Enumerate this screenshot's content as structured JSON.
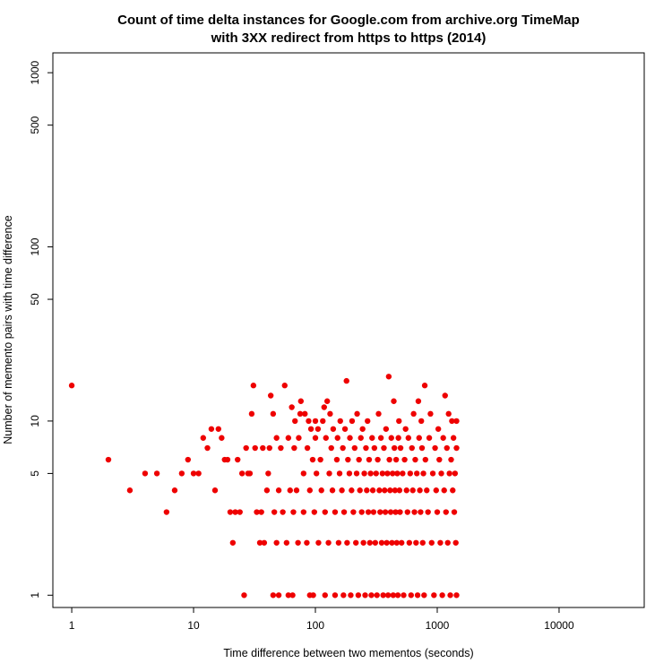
{
  "chart_data": {
    "type": "scatter",
    "title_line1": "Count of time delta instances for Google.com from archive.org TimeMap",
    "title_line2": "with 3XX redirect from https to https (2014)",
    "xlabel": "Time difference between two mementos (seconds)",
    "ylabel": "Number of memento pairs with time difference",
    "x_scale": "log",
    "y_scale": "log",
    "xlim": [
      0.7,
      50000
    ],
    "ylim": [
      0.85,
      1300
    ],
    "x_ticks": [
      1,
      10,
      100,
      1000,
      10000
    ],
    "x_tick_labels": [
      "1",
      "10",
      "100",
      "1000",
      "10000"
    ],
    "y_ticks": [
      1,
      5,
      10,
      50,
      100,
      500,
      1000
    ],
    "y_tick_labels": [
      "1",
      "5",
      "10",
      "50",
      "100",
      "500",
      "1000"
    ],
    "grid": false,
    "legend": "none",
    "point_color": "#ee0000",
    "series": [
      {
        "points": [
          [
            1,
            16
          ],
          [
            2,
            6
          ],
          [
            3,
            4
          ],
          [
            4,
            5
          ],
          [
            5,
            5
          ],
          [
            6,
            3
          ],
          [
            7,
            4
          ],
          [
            8,
            5
          ],
          [
            9,
            6
          ],
          [
            10,
            5
          ],
          [
            11,
            5
          ],
          [
            12,
            8
          ],
          [
            13,
            7
          ],
          [
            14,
            9
          ],
          [
            15,
            4
          ],
          [
            16,
            9
          ],
          [
            17,
            8
          ],
          [
            18,
            6
          ],
          [
            19,
            6
          ],
          [
            20,
            3
          ],
          [
            21,
            2
          ],
          [
            22,
            3
          ],
          [
            23,
            6
          ],
          [
            24,
            3
          ],
          [
            25,
            5
          ],
          [
            26,
            1
          ],
          [
            27,
            7
          ],
          [
            28,
            5
          ],
          [
            29,
            5
          ],
          [
            30,
            11
          ],
          [
            31,
            16
          ],
          [
            32,
            7
          ],
          [
            33,
            3
          ],
          [
            35,
            2
          ],
          [
            36,
            3
          ],
          [
            37,
            7
          ],
          [
            38,
            2
          ],
          [
            40,
            4
          ],
          [
            41,
            5
          ],
          [
            42,
            7
          ],
          [
            43,
            14
          ],
          [
            45,
            1
          ],
          [
            45,
            11
          ],
          [
            46,
            3
          ],
          [
            48,
            2
          ],
          [
            48,
            8
          ],
          [
            50,
            1
          ],
          [
            50,
            4
          ],
          [
            52,
            7
          ],
          [
            54,
            3
          ],
          [
            56,
            16
          ],
          [
            58,
            2
          ],
          [
            60,
            8
          ],
          [
            60,
            1
          ],
          [
            62,
            4
          ],
          [
            64,
            12
          ],
          [
            65,
            1
          ],
          [
            66,
            3
          ],
          [
            67,
            7
          ],
          [
            68,
            10
          ],
          [
            70,
            4
          ],
          [
            72,
            2
          ],
          [
            73,
            8
          ],
          [
            75,
            11
          ],
          [
            76,
            13
          ],
          [
            80,
            3
          ],
          [
            80,
            5
          ],
          [
            82,
            11
          ],
          [
            85,
            2
          ],
          [
            86,
            7
          ],
          [
            88,
            10
          ],
          [
            90,
            1
          ],
          [
            90,
            4
          ],
          [
            92,
            9
          ],
          [
            95,
            6
          ],
          [
            96,
            1
          ],
          [
            98,
            3
          ],
          [
            100,
            8
          ],
          [
            100,
            10
          ],
          [
            102,
            5
          ],
          [
            105,
            9
          ],
          [
            106,
            2
          ],
          [
            110,
            6
          ],
          [
            112,
            4
          ],
          [
            115,
            10
          ],
          [
            118,
            12
          ],
          [
            120,
            1
          ],
          [
            120,
            3
          ],
          [
            122,
            8
          ],
          [
            125,
            13
          ],
          [
            128,
            2
          ],
          [
            130,
            5
          ],
          [
            132,
            11
          ],
          [
            135,
            7
          ],
          [
            138,
            4
          ],
          [
            140,
            9
          ],
          [
            145,
            1
          ],
          [
            145,
            3
          ],
          [
            150,
            6
          ],
          [
            152,
            8
          ],
          [
            155,
            2
          ],
          [
            158,
            5
          ],
          [
            160,
            10
          ],
          [
            165,
            4
          ],
          [
            168,
            7
          ],
          [
            170,
            1
          ],
          [
            172,
            3
          ],
          [
            175,
            9
          ],
          [
            180,
            17
          ],
          [
            182,
            2
          ],
          [
            185,
            6
          ],
          [
            190,
            5
          ],
          [
            192,
            8
          ],
          [
            195,
            1
          ],
          [
            198,
            4
          ],
          [
            200,
            10
          ],
          [
            205,
            3
          ],
          [
            210,
            7
          ],
          [
            215,
            2
          ],
          [
            218,
            5
          ],
          [
            220,
            11
          ],
          [
            225,
            1
          ],
          [
            228,
            6
          ],
          [
            232,
            4
          ],
          [
            236,
            8
          ],
          [
            240,
            3
          ],
          [
            244,
            9
          ],
          [
            248,
            2
          ],
          [
            252,
            5
          ],
          [
            256,
            1
          ],
          [
            260,
            7
          ],
          [
            264,
            4
          ],
          [
            268,
            10
          ],
          [
            272,
            3
          ],
          [
            276,
            6
          ],
          [
            280,
            2
          ],
          [
            284,
            5
          ],
          [
            288,
            1
          ],
          [
            292,
            8
          ],
          [
            296,
            4
          ],
          [
            300,
            3
          ],
          [
            305,
            7
          ],
          [
            310,
            2
          ],
          [
            315,
            5
          ],
          [
            320,
            1
          ],
          [
            325,
            6
          ],
          [
            330,
            11
          ],
          [
            335,
            4
          ],
          [
            340,
            3
          ],
          [
            345,
            8
          ],
          [
            350,
            2
          ],
          [
            355,
            5
          ],
          [
            360,
            1
          ],
          [
            365,
            7
          ],
          [
            370,
            4
          ],
          [
            375,
            3
          ],
          [
            380,
            9
          ],
          [
            385,
            2
          ],
          [
            390,
            5
          ],
          [
            395,
            1
          ],
          [
            400,
            18
          ],
          [
            405,
            6
          ],
          [
            410,
            4
          ],
          [
            415,
            3
          ],
          [
            420,
            8
          ],
          [
            425,
            2
          ],
          [
            430,
            5
          ],
          [
            435,
            1
          ],
          [
            440,
            13
          ],
          [
            445,
            7
          ],
          [
            450,
            4
          ],
          [
            455,
            3
          ],
          [
            460,
            6
          ],
          [
            465,
            2
          ],
          [
            470,
            5
          ],
          [
            475,
            1
          ],
          [
            480,
            8
          ],
          [
            485,
            10
          ],
          [
            490,
            4
          ],
          [
            495,
            3
          ],
          [
            500,
            7
          ],
          [
            510,
            2
          ],
          [
            520,
            5
          ],
          [
            530,
            1
          ],
          [
            540,
            6
          ],
          [
            550,
            9
          ],
          [
            560,
            4
          ],
          [
            570,
            3
          ],
          [
            580,
            8
          ],
          [
            590,
            2
          ],
          [
            600,
            5
          ],
          [
            610,
            1
          ],
          [
            620,
            7
          ],
          [
            630,
            4
          ],
          [
            640,
            11
          ],
          [
            650,
            3
          ],
          [
            660,
            6
          ],
          [
            670,
            2
          ],
          [
            680,
            5
          ],
          [
            690,
            1
          ],
          [
            700,
            13
          ],
          [
            710,
            8
          ],
          [
            720,
            4
          ],
          [
            730,
            3
          ],
          [
            740,
            10
          ],
          [
            750,
            7
          ],
          [
            760,
            2
          ],
          [
            770,
            5
          ],
          [
            780,
            1
          ],
          [
            790,
            16
          ],
          [
            800,
            6
          ],
          [
            820,
            4
          ],
          [
            840,
            3
          ],
          [
            860,
            8
          ],
          [
            880,
            11
          ],
          [
            900,
            2
          ],
          [
            920,
            5
          ],
          [
            940,
            1
          ],
          [
            960,
            7
          ],
          [
            980,
            4
          ],
          [
            1000,
            3
          ],
          [
            1020,
            9
          ],
          [
            1040,
            6
          ],
          [
            1060,
            2
          ],
          [
            1080,
            5
          ],
          [
            1100,
            1
          ],
          [
            1120,
            8
          ],
          [
            1140,
            4
          ],
          [
            1160,
            14
          ],
          [
            1180,
            3
          ],
          [
            1200,
            7
          ],
          [
            1220,
            2
          ],
          [
            1240,
            11
          ],
          [
            1260,
            5
          ],
          [
            1280,
            1
          ],
          [
            1300,
            6
          ],
          [
            1320,
            10
          ],
          [
            1340,
            4
          ],
          [
            1360,
            8
          ],
          [
            1380,
            3
          ],
          [
            1400,
            5
          ],
          [
            1420,
            2
          ],
          [
            1440,
            7
          ],
          [
            1440,
            10
          ],
          [
            1440,
            1
          ]
        ]
      }
    ]
  }
}
